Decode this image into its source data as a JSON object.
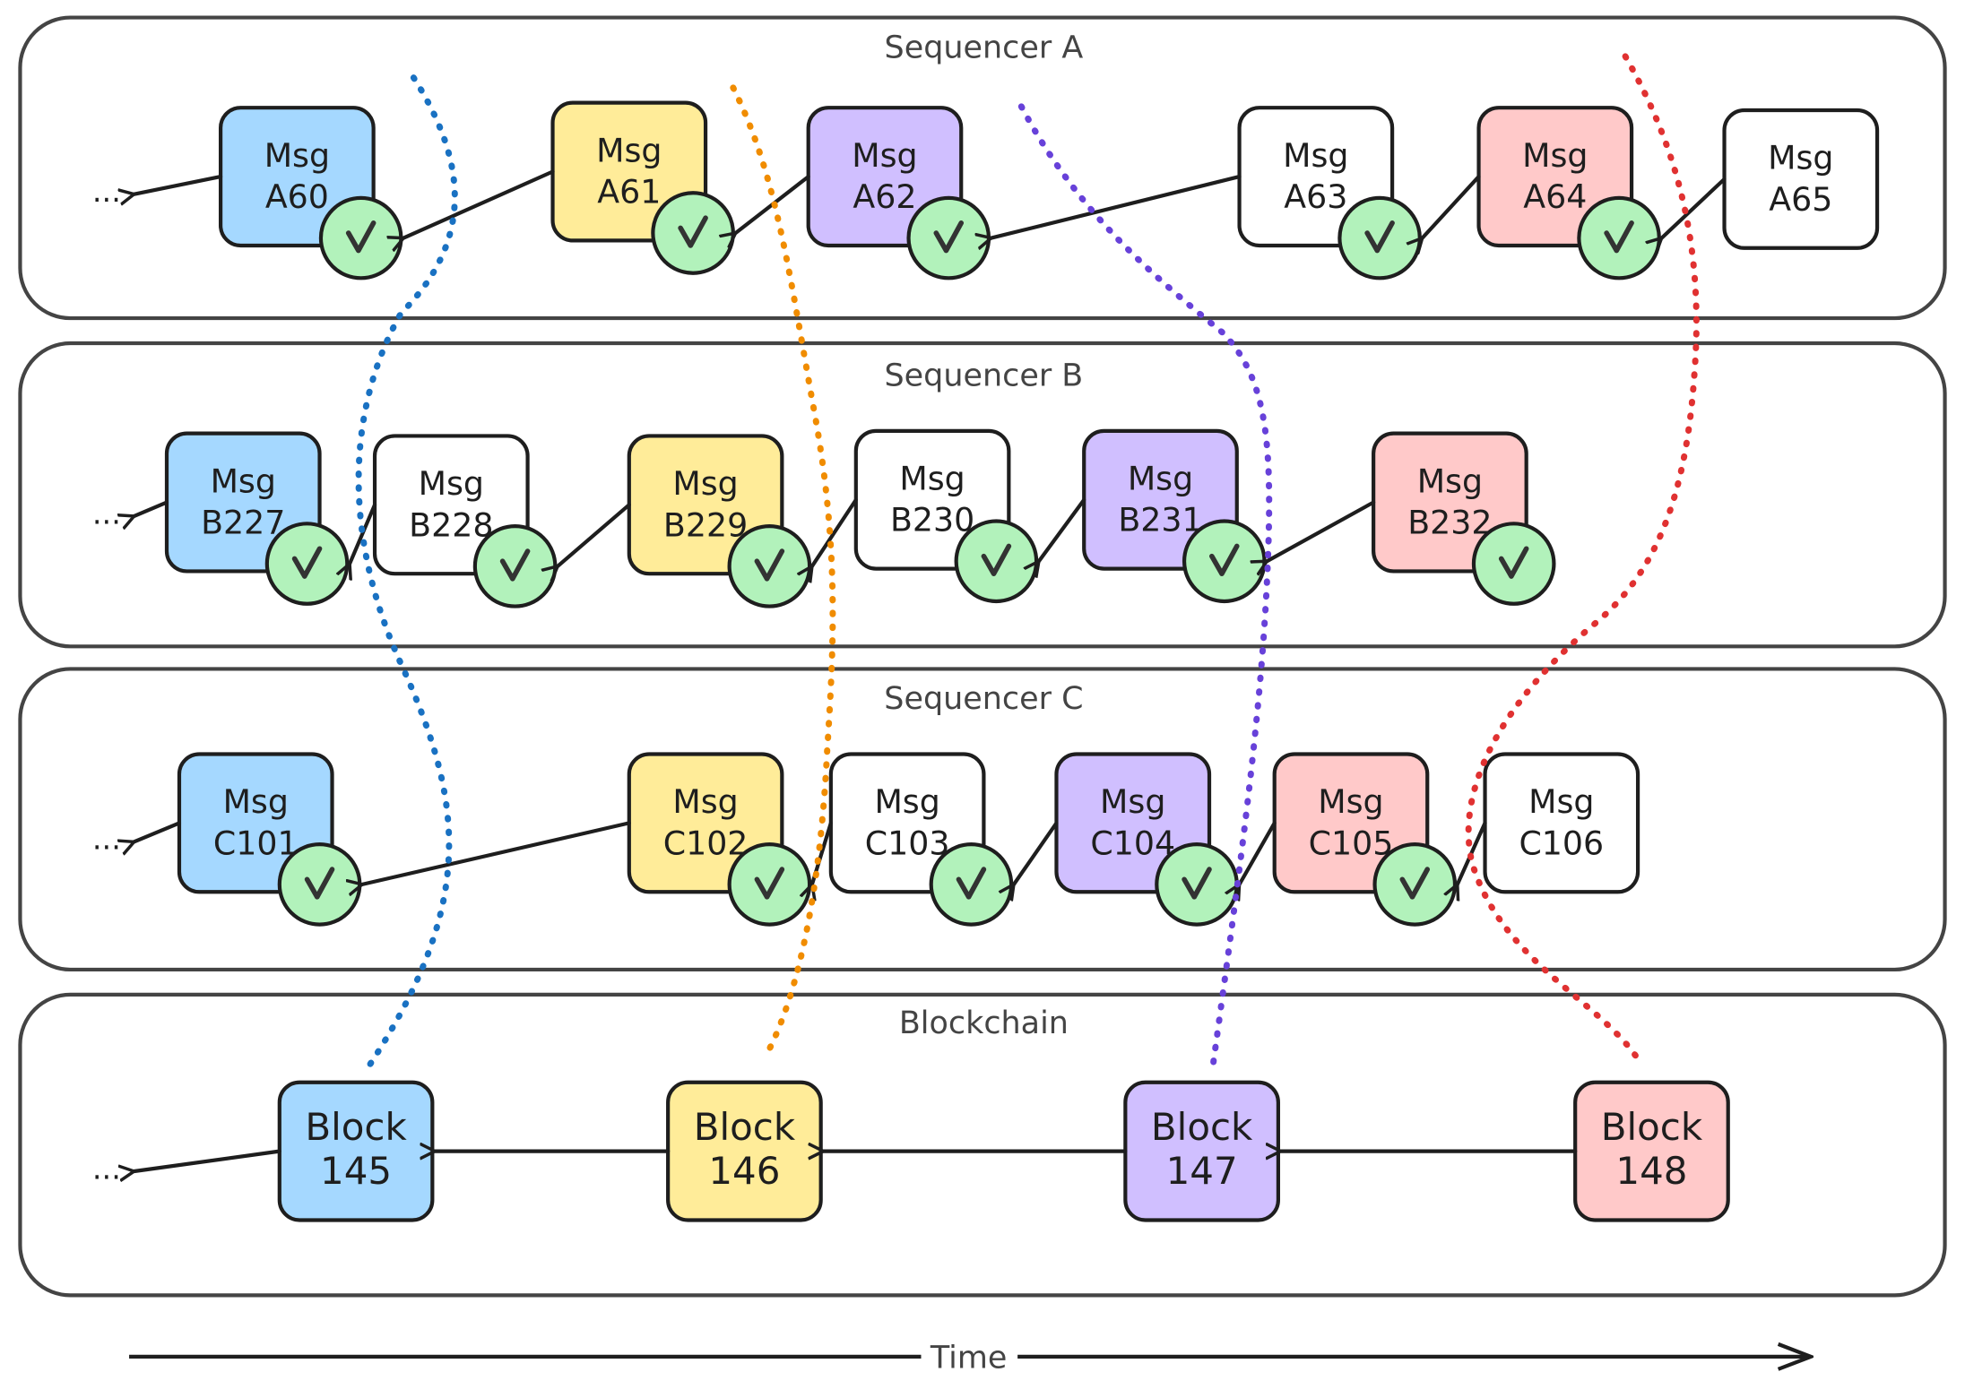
{
  "colors": {
    "blue": "#a5d8ff",
    "yellow": "#ffec99",
    "purple": "#d0bfff",
    "red": "#ffc9c9",
    "white": "#ffffff",
    "check": "#b2f2bb",
    "dot_blue": "#1971c2",
    "dot_orange": "#f08c00",
    "dot_purple": "#6741d9",
    "dot_red": "#e03131"
  },
  "lanes": [
    {
      "title": "Sequencer A",
      "ellipsis": "...",
      "items": [
        {
          "line1": "Msg",
          "line2": "A60",
          "color": "blue",
          "checked": true
        },
        {
          "line1": "Msg",
          "line2": "A61",
          "color": "yellow",
          "checked": true
        },
        {
          "line1": "Msg",
          "line2": "A62",
          "color": "purple",
          "checked": true
        },
        {
          "line1": "Msg",
          "line2": "A63",
          "color": "white",
          "checked": true
        },
        {
          "line1": "Msg",
          "line2": "A64",
          "color": "red",
          "checked": true
        },
        {
          "line1": "Msg",
          "line2": "A65",
          "color": "white",
          "checked": false
        }
      ]
    },
    {
      "title": "Sequencer B",
      "ellipsis": "...",
      "items": [
        {
          "line1": "Msg",
          "line2": "B227",
          "color": "blue",
          "checked": true
        },
        {
          "line1": "Msg",
          "line2": "B228",
          "color": "white",
          "checked": true
        },
        {
          "line1": "Msg",
          "line2": "B229",
          "color": "yellow",
          "checked": true
        },
        {
          "line1": "Msg",
          "line2": "B230",
          "color": "white",
          "checked": true
        },
        {
          "line1": "Msg",
          "line2": "B231",
          "color": "purple",
          "checked": true
        },
        {
          "line1": "Msg",
          "line2": "B232",
          "color": "red",
          "checked": true
        }
      ]
    },
    {
      "title": "Sequencer C",
      "ellipsis": "...",
      "items": [
        {
          "line1": "Msg",
          "line2": "C101",
          "color": "blue",
          "checked": true
        },
        {
          "line1": "Msg",
          "line2": "C102",
          "color": "yellow",
          "checked": true
        },
        {
          "line1": "Msg",
          "line2": "C103",
          "color": "white",
          "checked": true
        },
        {
          "line1": "Msg",
          "line2": "C104",
          "color": "purple",
          "checked": true
        },
        {
          "line1": "Msg",
          "line2": "C105",
          "color": "red",
          "checked": true
        },
        {
          "line1": "Msg",
          "line2": "C106",
          "color": "white",
          "checked": false
        }
      ]
    },
    {
      "title": "Blockchain",
      "ellipsis": "...",
      "items": [
        {
          "line1": "Block",
          "line2": "145",
          "color": "blue",
          "checked": false
        },
        {
          "line1": "Block",
          "line2": "146",
          "color": "yellow",
          "checked": false
        },
        {
          "line1": "Block",
          "line2": "147",
          "color": "purple",
          "checked": false
        },
        {
          "line1": "Block",
          "line2": "148",
          "color": "red",
          "checked": false
        }
      ]
    }
  ],
  "dotted_links": [
    {
      "color": "dot_blue",
      "connects": [
        "A60",
        "B227",
        "C101",
        "145"
      ]
    },
    {
      "color": "dot_orange",
      "connects": [
        "A61",
        "B229",
        "C102",
        "146"
      ]
    },
    {
      "color": "dot_purple",
      "connects": [
        "A62",
        "B231",
        "C104",
        "147"
      ]
    },
    {
      "color": "dot_red",
      "connects": [
        "A64",
        "B232",
        "C105",
        "148"
      ]
    }
  ],
  "time_axis": {
    "label": "Time"
  }
}
